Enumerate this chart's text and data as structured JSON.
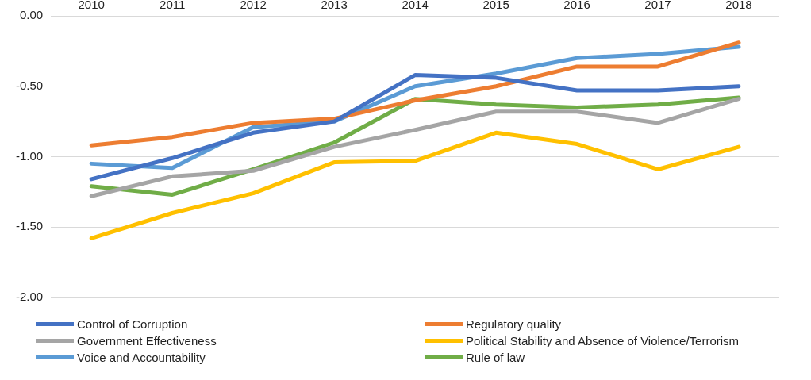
{
  "chart_data": {
    "type": "line",
    "categories": [
      "2010",
      "2011",
      "2012",
      "2013",
      "2014",
      "2015",
      "2016",
      "2017",
      "2018"
    ],
    "series": [
      {
        "name": "Control of Corruption",
        "color": "#4472c4",
        "values": [
          -1.16,
          -1.01,
          -0.83,
          -0.75,
          -0.42,
          -0.44,
          -0.53,
          -0.53,
          -0.5
        ]
      },
      {
        "name": "Regulatory quality",
        "color": "#ed7d31",
        "values": [
          -0.92,
          -0.86,
          -0.76,
          -0.73,
          -0.6,
          -0.5,
          -0.36,
          -0.36,
          -0.19
        ]
      },
      {
        "name": "Government Effectiveness",
        "color": "#a5a5a5",
        "values": [
          -1.28,
          -1.14,
          -1.1,
          -0.93,
          -0.81,
          -0.68,
          -0.68,
          -0.76,
          -0.59
        ]
      },
      {
        "name": "Political Stability and Absence of Violence/Terrorism",
        "color": "#ffc000",
        "values": [
          -1.58,
          -1.4,
          -1.26,
          -1.04,
          -1.03,
          -0.83,
          -0.91,
          -1.09,
          -0.93
        ]
      },
      {
        "name": "Voice and Accountability",
        "color": "#5b9bd5",
        "values": [
          -1.05,
          -1.08,
          -0.79,
          -0.75,
          -0.5,
          -0.41,
          -0.3,
          -0.27,
          -0.22
        ]
      },
      {
        "name": "Rule of law",
        "color": "#70ad47",
        "values": [
          -1.21,
          -1.27,
          -1.09,
          -0.9,
          -0.59,
          -0.63,
          -0.65,
          -0.63,
          -0.58
        ]
      }
    ],
    "ylim": [
      -2,
      0
    ],
    "yticks": [
      {
        "value": -2,
        "label": "-2.00"
      },
      {
        "value": -1.5,
        "label": "-1.50"
      },
      {
        "value": -1,
        "label": "-1.00"
      },
      {
        "value": -0.5,
        "label": "-0.50"
      },
      {
        "value": 0,
        "label": "0.00"
      }
    ],
    "grid": "y",
    "legend": "bottom",
    "marker": "none",
    "line_style": "solid"
  }
}
